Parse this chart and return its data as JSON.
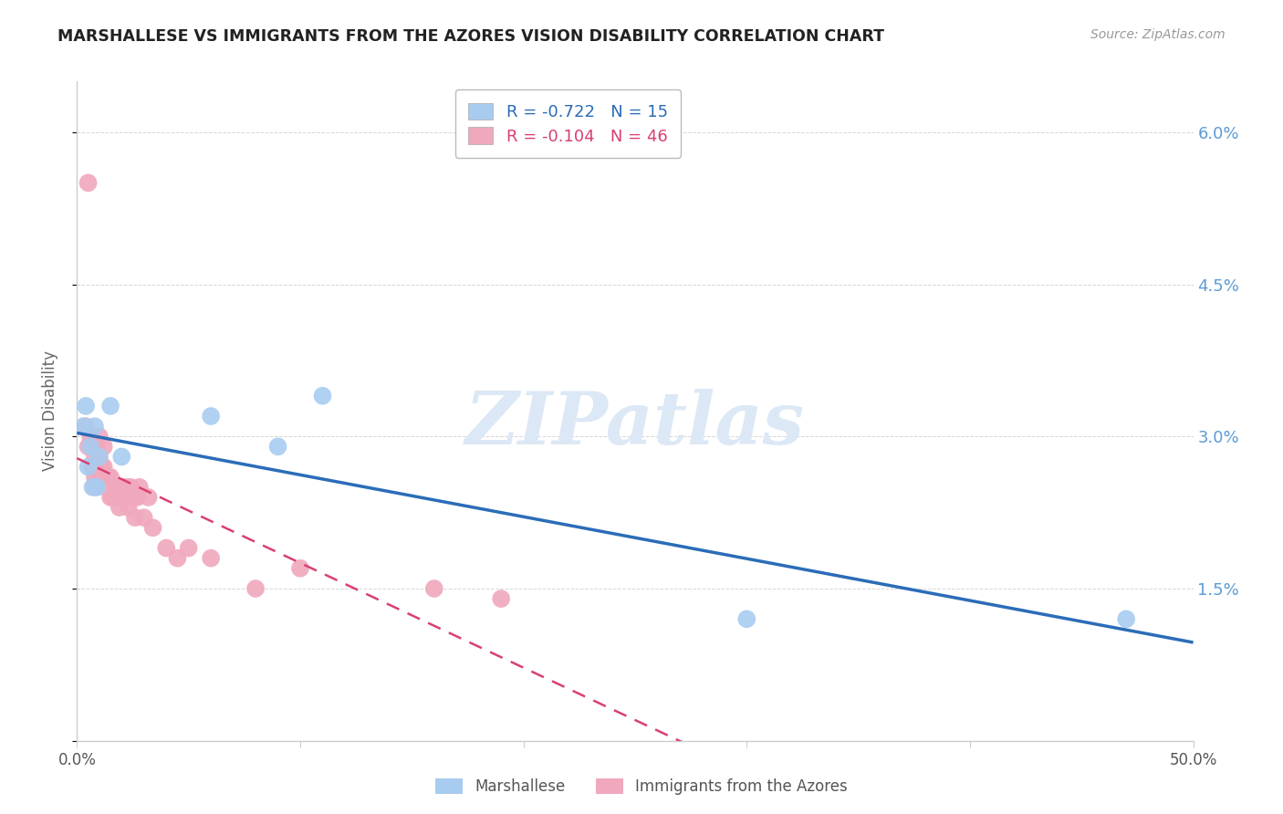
{
  "title": "MARSHALLESE VS IMMIGRANTS FROM THE AZORES VISION DISABILITY CORRELATION CHART",
  "source": "Source: ZipAtlas.com",
  "ylabel": "Vision Disability",
  "xlim": [
    0.0,
    0.5
  ],
  "ylim": [
    0.0,
    0.065
  ],
  "yticks": [
    0.0,
    0.015,
    0.03,
    0.045,
    0.06
  ],
  "ytick_labels_right": [
    "",
    "1.5%",
    "3.0%",
    "4.5%",
    "6.0%"
  ],
  "xticks": [
    0.0,
    0.1,
    0.2,
    0.3,
    0.4,
    0.5
  ],
  "xtick_labels": [
    "0.0%",
    "",
    "",
    "",
    "",
    "50.0%"
  ],
  "blue_color": "#A8CCF0",
  "pink_color": "#F0A8BC",
  "blue_line_color": "#2B6CB8",
  "pink_line_color": "#D94070",
  "pink_dash_color": "#F0C0CC",
  "legend_R_blue": "-0.722",
  "legend_N_blue": "15",
  "legend_R_pink": "-0.104",
  "legend_N_pink": "46",
  "legend_label_blue": "Marshallese",
  "legend_label_pink": "Immigrants from the Azores",
  "blue_x": [
    0.003,
    0.004,
    0.005,
    0.006,
    0.007,
    0.008,
    0.009,
    0.01,
    0.015,
    0.02,
    0.06,
    0.09,
    0.11,
    0.3,
    0.47
  ],
  "blue_y": [
    0.031,
    0.033,
    0.027,
    0.029,
    0.025,
    0.031,
    0.025,
    0.028,
    0.033,
    0.028,
    0.032,
    0.029,
    0.034,
    0.012,
    0.012
  ],
  "pink_x": [
    0.004,
    0.005,
    0.005,
    0.006,
    0.007,
    0.007,
    0.008,
    0.008,
    0.008,
    0.009,
    0.009,
    0.01,
    0.01,
    0.01,
    0.011,
    0.012,
    0.012,
    0.013,
    0.013,
    0.014,
    0.015,
    0.015,
    0.016,
    0.017,
    0.018,
    0.019,
    0.02,
    0.021,
    0.022,
    0.023,
    0.024,
    0.025,
    0.026,
    0.027,
    0.028,
    0.03,
    0.032,
    0.034,
    0.04,
    0.045,
    0.05,
    0.06,
    0.08,
    0.1,
    0.16,
    0.19
  ],
  "pink_y": [
    0.031,
    0.055,
    0.029,
    0.03,
    0.029,
    0.027,
    0.028,
    0.026,
    0.025,
    0.029,
    0.027,
    0.03,
    0.028,
    0.026,
    0.027,
    0.029,
    0.027,
    0.026,
    0.025,
    0.026,
    0.026,
    0.024,
    0.024,
    0.025,
    0.024,
    0.023,
    0.025,
    0.024,
    0.025,
    0.023,
    0.025,
    0.024,
    0.022,
    0.024,
    0.025,
    0.022,
    0.024,
    0.021,
    0.019,
    0.018,
    0.019,
    0.018,
    0.015,
    0.017,
    0.015,
    0.014
  ],
  "grid_color": "#CCCCCC",
  "spine_color": "#CCCCCC",
  "right_axis_color": "#5B9BD5",
  "watermark_color": "#DCE8F5"
}
